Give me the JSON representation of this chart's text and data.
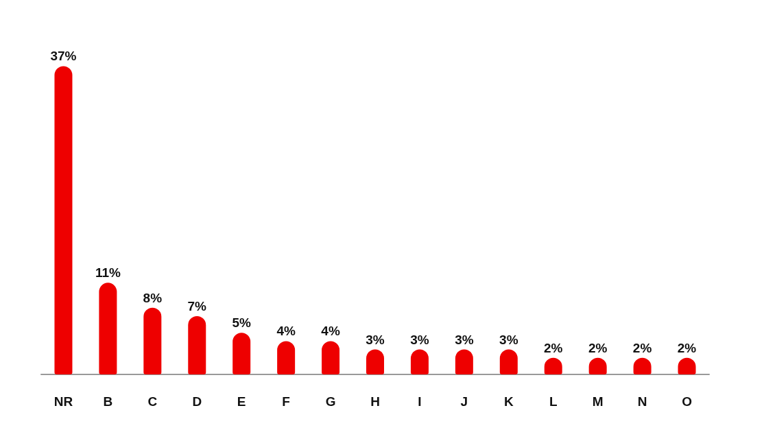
{
  "chart_data": {
    "type": "bar",
    "categories": [
      "NR",
      "B",
      "C",
      "D",
      "E",
      "F",
      "G",
      "H",
      "I",
      "J",
      "K",
      "L",
      "M",
      "N",
      "O"
    ],
    "values": [
      37,
      11,
      8,
      7,
      5,
      4,
      4,
      3,
      3,
      3,
      3,
      2,
      2,
      2,
      2
    ],
    "value_labels": [
      "37%",
      "11%",
      "8%",
      "7%",
      "5%",
      "4%",
      "4%",
      "3%",
      "3%",
      "3%",
      "3%",
      "2%",
      "2%",
      "2%",
      "2%"
    ],
    "color": "#ee0000"
  }
}
